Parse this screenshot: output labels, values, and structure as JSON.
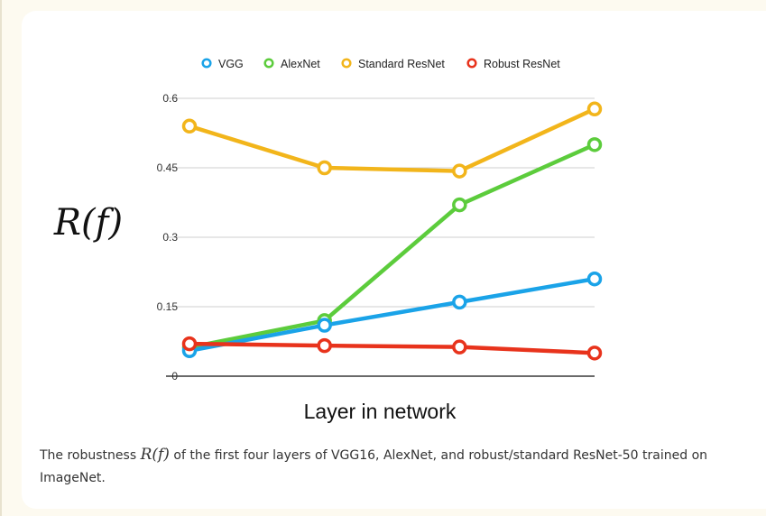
{
  "chart_data": {
    "type": "line",
    "title": "",
    "xlabel": "Layer in network",
    "ylabel": "R(f)",
    "x": [
      1,
      2,
      3,
      4
    ],
    "yticks": [
      "0",
      "0.15",
      "0.3",
      "0.45",
      "0.6"
    ],
    "ylim": [
      0,
      0.6
    ],
    "grid": true,
    "legend_position": "top",
    "series": [
      {
        "name": "VGG",
        "color": "#1aa3e8",
        "values": [
          0.055,
          0.11,
          0.16,
          0.21
        ]
      },
      {
        "name": "AlexNet",
        "color": "#5ccc3c",
        "values": [
          0.062,
          0.12,
          0.37,
          0.5
        ]
      },
      {
        "name": "Standard ResNet",
        "color": "#f2b51b",
        "values": [
          0.54,
          0.45,
          0.443,
          0.577
        ]
      },
      {
        "name": "Robust ResNet",
        "color": "#e8331c",
        "values": [
          0.07,
          0.066,
          0.063,
          0.05
        ]
      }
    ]
  },
  "caption": {
    "before": "The robustness ",
    "math": "R(f)",
    "after": " of the first four layers of VGG16, AlexNet, and robust/standard ResNet-50 trained on ImageNet."
  }
}
